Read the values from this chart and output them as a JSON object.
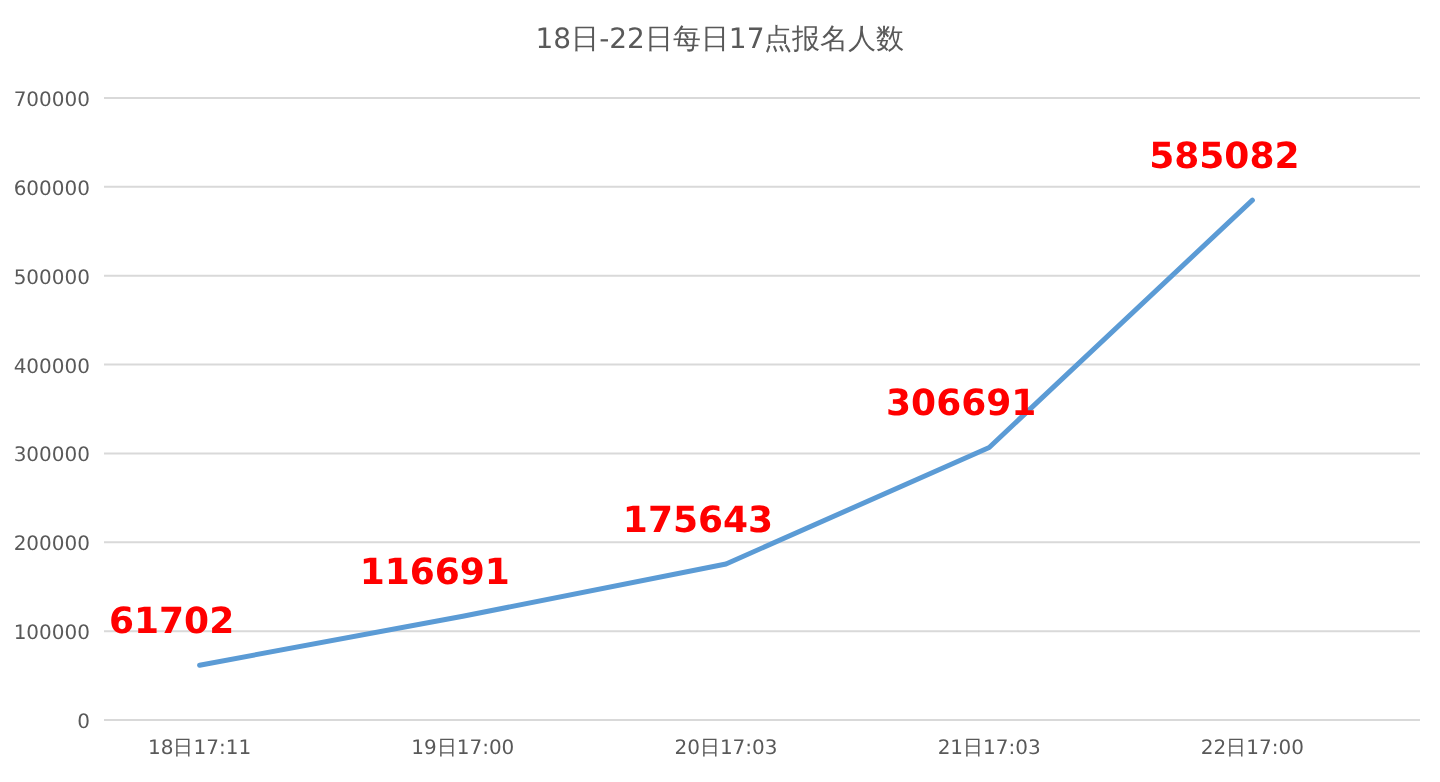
{
  "chart_data": {
    "type": "line",
    "title": "18日-22日每日17点报名人数",
    "categories": [
      "18日17:11",
      "19日17:00",
      "20日17:03",
      "21日17:03",
      "22日17:00"
    ],
    "series": [
      {
        "color": "#5b9bd5",
        "values": [
          61702,
          116691,
          175643,
          306691,
          585082
        ]
      }
    ],
    "ylim": [
      0,
      700000
    ],
    "yticks": [
      0,
      100000,
      200000,
      300000,
      400000,
      500000,
      600000,
      700000
    ],
    "grid": "y",
    "data_labels": true,
    "marker": "none",
    "line_style": "solid"
  }
}
